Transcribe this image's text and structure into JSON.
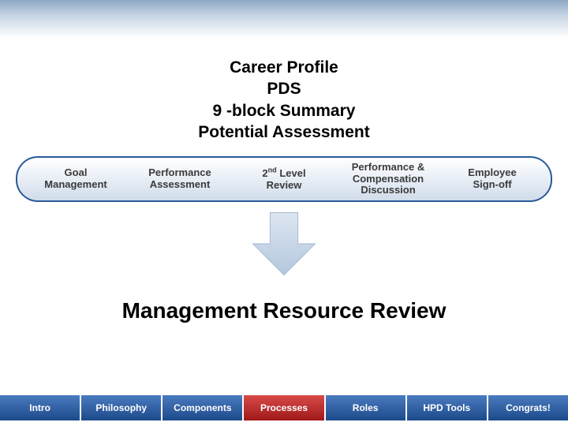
{
  "title": {
    "lines": [
      "Career Profile",
      "PDS",
      "9 -block Summary",
      "Potential Assessment"
    ],
    "fontsize": 21,
    "color": "#000000"
  },
  "process_bar": {
    "border_color": "#2a5a9a",
    "bg_gradient_top": "#ffffff",
    "bg_gradient_bottom": "#d0dcea",
    "text_color": "#3a3a3a",
    "fontsize": 13,
    "items": [
      {
        "line1": "Goal",
        "line2": "Management"
      },
      {
        "line1": "Performance",
        "line2": "Assessment"
      },
      {
        "line1_html": "2<sup>nd</sup> Level",
        "line2": "Review"
      },
      {
        "line1": "Performance &",
        "line2": "Compensation",
        "line3": "Discussion"
      },
      {
        "line1": "Employee",
        "line2": "Sign-off"
      }
    ]
  },
  "arrow": {
    "fill_top": "#dde6f1",
    "fill_bottom": "#b4c7de",
    "stroke": "#9fb6d2"
  },
  "mrr": {
    "text": "Management Resource Review",
    "fontsize": 28,
    "color": "#000000"
  },
  "footer": {
    "blue_bg_top": "#4a7bbf",
    "blue_bg_bottom": "#1c4a8a",
    "red_bg_top": "#d84a4a",
    "red_bg_bottom": "#a01818",
    "text_color": "#ffffff",
    "fontsize": 12,
    "items": [
      {
        "label": "Intro",
        "style": "blue"
      },
      {
        "label": "Philosophy",
        "style": "blue"
      },
      {
        "label": "Components",
        "style": "blue"
      },
      {
        "label": "Processes",
        "style": "red"
      },
      {
        "label": "Roles",
        "style": "blue"
      },
      {
        "label": "HPD Tools",
        "style": "blue"
      },
      {
        "label": "Congrats!",
        "style": "blue"
      }
    ]
  }
}
